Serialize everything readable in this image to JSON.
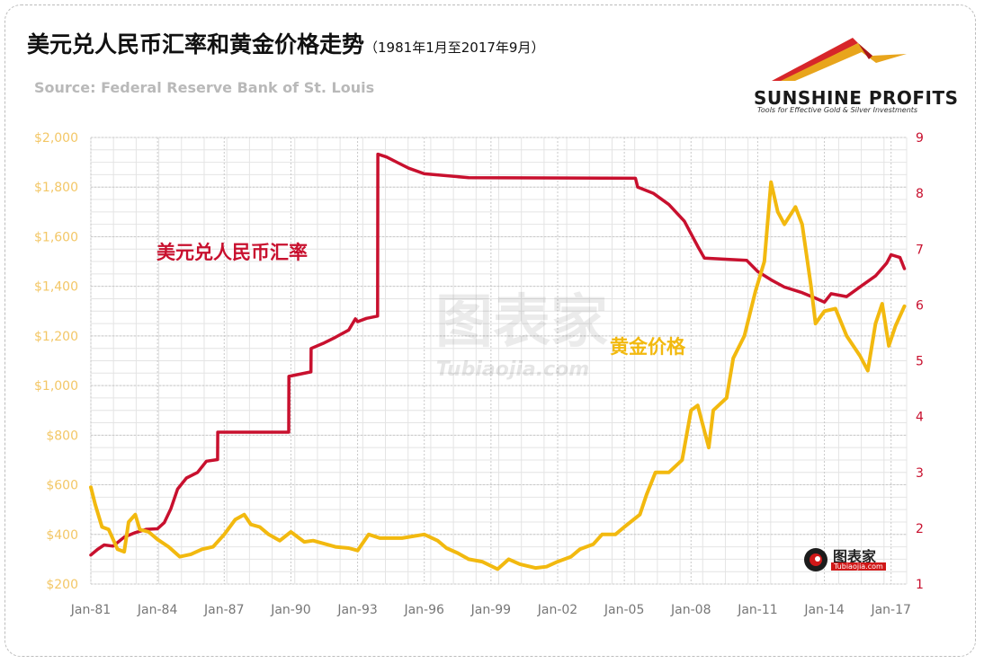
{
  "header": {
    "title": "美元兑人民币汇率和黄金价格走势",
    "subtitle": "（1981年1月至2017年9月）",
    "source": "Source: Federal Reserve Bank of St. Louis"
  },
  "brand": {
    "name": "SUNSHINE PROFITS",
    "tagline": "Tools for Effective Gold & Silver Investments",
    "watermark": "图表家",
    "watermark_url": "Tubiaojia.com",
    "corner_logo": "图表家",
    "corner_logo_url": "Tubiaojia.com"
  },
  "colors": {
    "usdcny": "#c8102e",
    "gold": "#f2b90f",
    "left_axis_text": "#f3c766",
    "right_axis_text": "#c8102e",
    "grid": "#c9c9c9"
  },
  "chart_data": {
    "type": "line",
    "x_ticks": [
      "Jan-81",
      "Jan-84",
      "Jan-87",
      "Jan-90",
      "Jan-93",
      "Jan-96",
      "Jan-99",
      "Jan-02",
      "Jan-05",
      "Jan-08",
      "Jan-11",
      "Jan-14",
      "Jan-17"
    ],
    "x_range": [
      1981.0,
      2017.7
    ],
    "y_left": {
      "ticks": [
        "$200",
        "$400",
        "$600",
        "$800",
        "$1,000",
        "$1,200",
        "$1,400",
        "$1,600",
        "$1,800",
        "$2,000"
      ],
      "range": [
        200,
        2000
      ]
    },
    "y_right": {
      "ticks": [
        "1",
        "2",
        "3",
        "4",
        "5",
        "6",
        "7",
        "8",
        "9"
      ],
      "range": [
        1,
        9
      ]
    },
    "series": [
      {
        "name": "美元兑人民币汇率",
        "axis": "right",
        "points": [
          [
            1981.0,
            1.52
          ],
          [
            1981.3,
            1.62
          ],
          [
            1981.6,
            1.7
          ],
          [
            1982.0,
            1.68
          ],
          [
            1982.5,
            1.84
          ],
          [
            1983.0,
            1.92
          ],
          [
            1983.5,
            1.98
          ],
          [
            1984.0,
            1.99
          ],
          [
            1984.3,
            2.1
          ],
          [
            1984.6,
            2.35
          ],
          [
            1984.9,
            2.7
          ],
          [
            1985.3,
            2.9
          ],
          [
            1985.8,
            3.0
          ],
          [
            1986.2,
            3.2
          ],
          [
            1986.7,
            3.23
          ],
          [
            1986.71,
            3.72
          ],
          [
            1989.9,
            3.72
          ],
          [
            1989.91,
            4.72
          ],
          [
            1990.9,
            4.8
          ],
          [
            1990.91,
            5.22
          ],
          [
            1991.5,
            5.32
          ],
          [
            1992.0,
            5.42
          ],
          [
            1992.6,
            5.55
          ],
          [
            1992.9,
            5.75
          ],
          [
            1993.0,
            5.7
          ],
          [
            1993.4,
            5.76
          ],
          [
            1993.9,
            5.8
          ],
          [
            1993.91,
            8.7
          ],
          [
            1994.3,
            8.65
          ],
          [
            1994.8,
            8.55
          ],
          [
            1995.3,
            8.45
          ],
          [
            1996.0,
            8.35
          ],
          [
            1998.0,
            8.28
          ],
          [
            2005.5,
            8.27
          ],
          [
            2005.6,
            8.11
          ],
          [
            2006.3,
            8.0
          ],
          [
            2007.0,
            7.8
          ],
          [
            2007.7,
            7.5
          ],
          [
            2008.3,
            7.05
          ],
          [
            2008.6,
            6.84
          ],
          [
            2010.5,
            6.8
          ],
          [
            2011.0,
            6.6
          ],
          [
            2011.6,
            6.45
          ],
          [
            2012.2,
            6.32
          ],
          [
            2013.0,
            6.22
          ],
          [
            2013.6,
            6.12
          ],
          [
            2014.0,
            6.05
          ],
          [
            2014.3,
            6.2
          ],
          [
            2015.0,
            6.15
          ],
          [
            2015.7,
            6.35
          ],
          [
            2016.3,
            6.52
          ],
          [
            2016.8,
            6.75
          ],
          [
            2017.0,
            6.9
          ],
          [
            2017.4,
            6.85
          ],
          [
            2017.6,
            6.65
          ]
        ]
      },
      {
        "name": "黄金价格",
        "axis": "left",
        "points": [
          [
            1981.0,
            590
          ],
          [
            1981.2,
            520
          ],
          [
            1981.5,
            430
          ],
          [
            1981.8,
            420
          ],
          [
            1982.2,
            340
          ],
          [
            1982.5,
            330
          ],
          [
            1982.7,
            450
          ],
          [
            1983.0,
            480
          ],
          [
            1983.2,
            420
          ],
          [
            1983.6,
            410
          ],
          [
            1984.0,
            380
          ],
          [
            1984.5,
            350
          ],
          [
            1985.0,
            310
          ],
          [
            1985.5,
            320
          ],
          [
            1986.0,
            340
          ],
          [
            1986.5,
            350
          ],
          [
            1987.0,
            400
          ],
          [
            1987.5,
            460
          ],
          [
            1987.9,
            480
          ],
          [
            1988.2,
            440
          ],
          [
            1988.6,
            430
          ],
          [
            1989.0,
            400
          ],
          [
            1989.5,
            375
          ],
          [
            1990.0,
            410
          ],
          [
            1990.6,
            370
          ],
          [
            1991.0,
            375
          ],
          [
            1991.6,
            360
          ],
          [
            1992.0,
            350
          ],
          [
            1992.6,
            345
          ],
          [
            1993.0,
            335
          ],
          [
            1993.5,
            400
          ],
          [
            1994.0,
            385
          ],
          [
            1995.0,
            385
          ],
          [
            1996.0,
            400
          ],
          [
            1996.6,
            375
          ],
          [
            1997.0,
            345
          ],
          [
            1997.5,
            325
          ],
          [
            1998.0,
            300
          ],
          [
            1998.6,
            290
          ],
          [
            1999.3,
            260
          ],
          [
            1999.8,
            300
          ],
          [
            2000.3,
            280
          ],
          [
            2001.0,
            265
          ],
          [
            2001.5,
            270
          ],
          [
            2002.0,
            290
          ],
          [
            2002.6,
            310
          ],
          [
            2003.0,
            340
          ],
          [
            2003.6,
            360
          ],
          [
            2004.0,
            400
          ],
          [
            2004.6,
            400
          ],
          [
            2005.0,
            430
          ],
          [
            2005.7,
            480
          ],
          [
            2006.0,
            560
          ],
          [
            2006.4,
            650
          ],
          [
            2007.0,
            650
          ],
          [
            2007.6,
            700
          ],
          [
            2008.0,
            900
          ],
          [
            2008.3,
            920
          ],
          [
            2008.8,
            750
          ],
          [
            2009.0,
            900
          ],
          [
            2009.6,
            950
          ],
          [
            2009.9,
            1110
          ],
          [
            2010.4,
            1200
          ],
          [
            2010.9,
            1380
          ],
          [
            2011.3,
            1500
          ],
          [
            2011.6,
            1820
          ],
          [
            2011.9,
            1700
          ],
          [
            2012.2,
            1650
          ],
          [
            2012.7,
            1720
          ],
          [
            2013.0,
            1650
          ],
          [
            2013.4,
            1400
          ],
          [
            2013.6,
            1250
          ],
          [
            2014.0,
            1300
          ],
          [
            2014.5,
            1310
          ],
          [
            2015.0,
            1200
          ],
          [
            2015.6,
            1120
          ],
          [
            2015.95,
            1060
          ],
          [
            2016.3,
            1250
          ],
          [
            2016.6,
            1330
          ],
          [
            2016.9,
            1160
          ],
          [
            2017.2,
            1240
          ],
          [
            2017.6,
            1320
          ]
        ]
      }
    ],
    "annotations": [
      {
        "text": "美元兑人民币汇率",
        "series": "usdcny"
      },
      {
        "text": "黄金价格",
        "series": "gold"
      }
    ],
    "grid": true
  }
}
